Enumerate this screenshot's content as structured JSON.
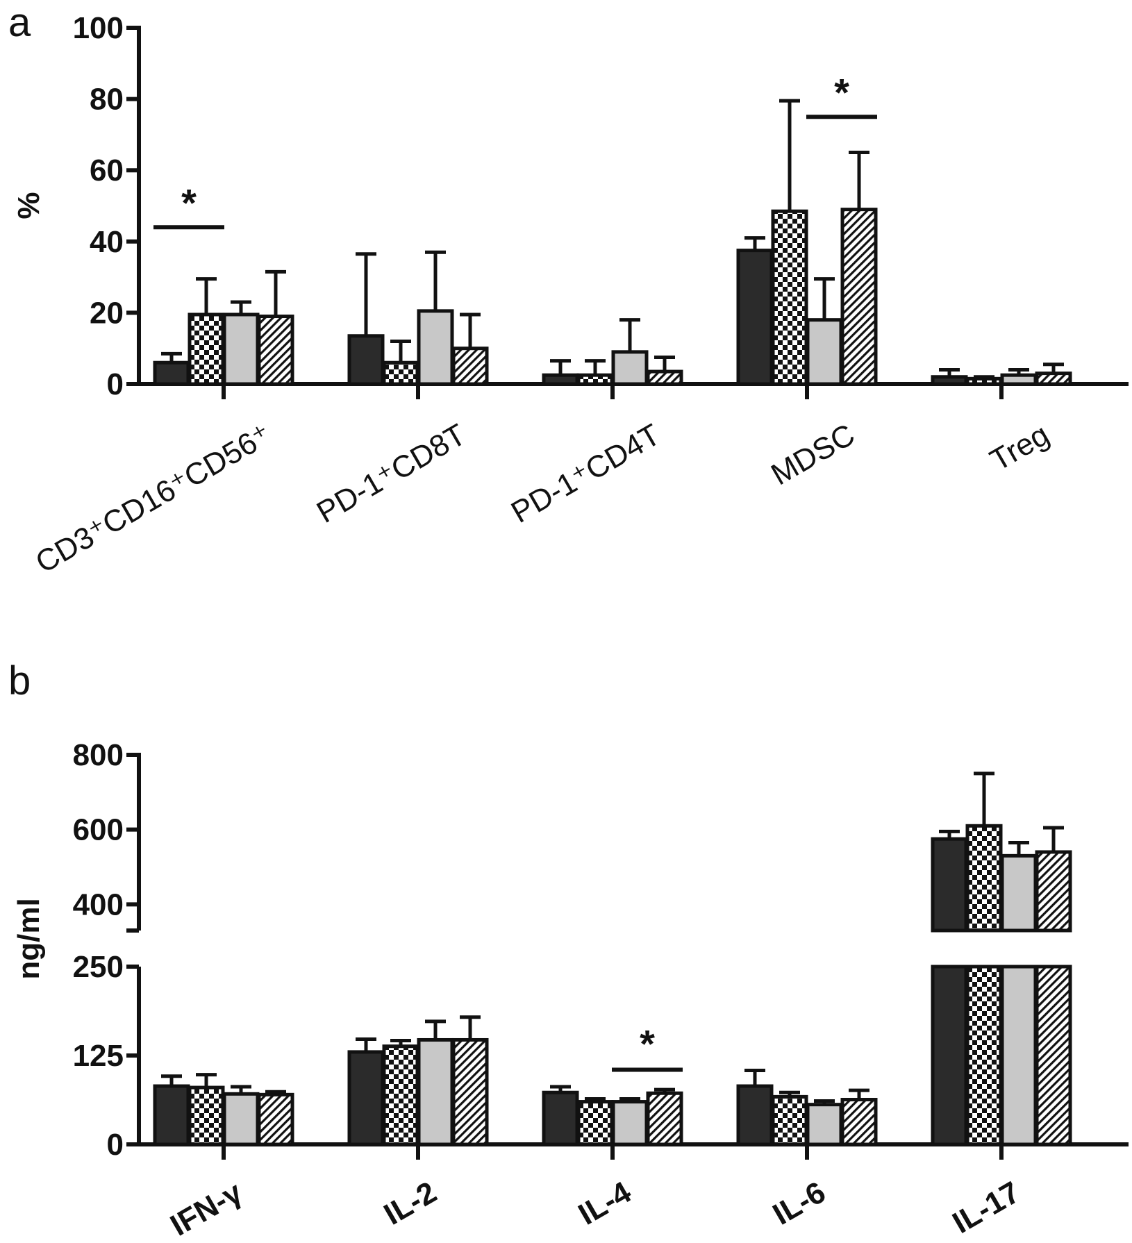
{
  "colors": {
    "ink": "#111111",
    "bar_dark": "#2b2b2b",
    "bar_light": "#c8c8c8",
    "background": "#ffffff"
  },
  "fill_styles": [
    "solid-dark",
    "checkerboard",
    "solid-light",
    "diagonal-hatch"
  ],
  "chart_data": [
    {
      "panel": "a",
      "type": "bar",
      "ylabel": "%",
      "ylim": [
        0,
        100
      ],
      "yticks": [
        0,
        20,
        40,
        60,
        80,
        100
      ],
      "categories": [
        "CD3⁺CD16⁺CD56⁺",
        "PD-1⁺CD8T",
        "PD-1⁺CD4T",
        "MDSC",
        "Treg"
      ],
      "category_label_rotation": -30,
      "series": [
        {
          "fill": "solid-dark",
          "values": [
            6,
            13.5,
            2.5,
            37.5,
            2
          ],
          "errors": [
            2.5,
            23,
            4,
            3.5,
            2
          ]
        },
        {
          "fill": "checkerboard",
          "values": [
            19.5,
            6,
            2.5,
            48.5,
            1.5
          ],
          "errors": [
            10,
            6,
            4,
            31,
            0.5
          ]
        },
        {
          "fill": "solid-light",
          "values": [
            19.5,
            20.5,
            9,
            18,
            2.5
          ],
          "errors": [
            3.5,
            16.5,
            9,
            11.5,
            1.5
          ]
        },
        {
          "fill": "diagonal-hatch",
          "values": [
            19,
            10,
            3.5,
            49,
            3
          ],
          "errors": [
            12.5,
            9.5,
            4,
            16,
            2.5
          ]
        }
      ],
      "significance": [
        {
          "category": 0,
          "from_series": 0,
          "to_series": 1,
          "y": 44,
          "label": "*"
        },
        {
          "category": 3,
          "from_series": 2,
          "to_series": 3,
          "y": 75,
          "label": "*"
        }
      ]
    },
    {
      "panel": "b",
      "type": "bar",
      "ylabel": "ng/ml",
      "broken_axis": true,
      "ylim_lower": [
        0,
        250
      ],
      "ylim_upper": [
        330,
        800
      ],
      "yticks_lower": [
        0,
        125,
        250
      ],
      "yticks_upper": [
        400,
        600,
        800
      ],
      "categories": [
        "IFN-γ",
        "IL-2",
        "IL-4",
        "IL-6",
        "IL-17"
      ],
      "category_label_rotation": -30,
      "series": [
        {
          "fill": "solid-dark",
          "values": [
            82,
            130,
            73,
            82,
            575
          ],
          "errors": [
            14,
            18,
            8,
            22,
            20
          ]
        },
        {
          "fill": "checkerboard",
          "values": [
            80,
            138,
            60,
            67,
            610
          ],
          "errors": [
            18,
            8,
            4,
            6,
            140
          ]
        },
        {
          "fill": "solid-light",
          "values": [
            71,
            147,
            60,
            56,
            530
          ],
          "errors": [
            10,
            26,
            4,
            5,
            35
          ]
        },
        {
          "fill": "diagonal-hatch",
          "values": [
            70,
            147,
            72,
            63,
            540
          ],
          "errors": [
            4,
            32,
            5,
            13,
            65
          ]
        }
      ],
      "significance": [
        {
          "category": 2,
          "from_series": 2,
          "to_series": 3,
          "y": 105,
          "label": "*"
        }
      ]
    }
  ]
}
